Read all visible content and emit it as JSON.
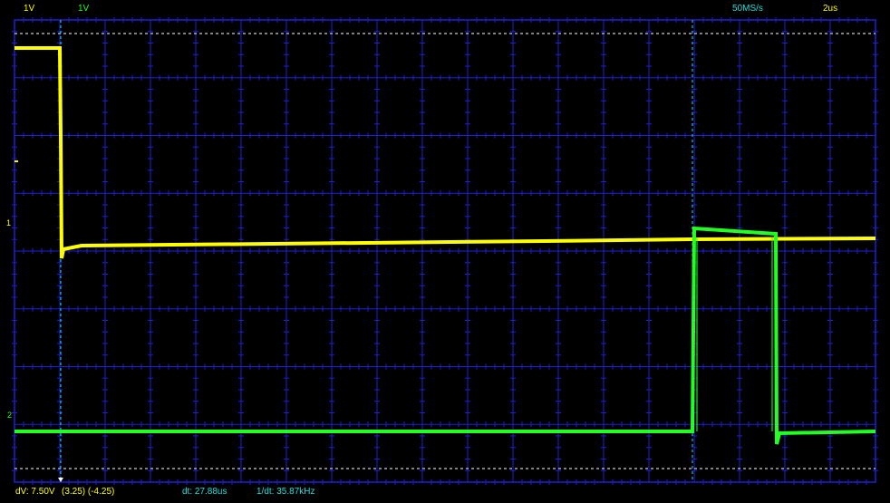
{
  "top_bar": {
    "ch1_scale": "1V",
    "ch2_scale": "1V",
    "sample_rate": "50MS/s",
    "timebase": "2us"
  },
  "markers": {
    "ch1_marker": "1",
    "ch2_marker": "2"
  },
  "bottom_bar": {
    "dv": "dV: 7.50V",
    "cursor_values": "(3.25) (-4.25)",
    "dt": "dt: 27.88us",
    "inv_dt": "1/dt: 35.87kHz"
  },
  "colors": {
    "grid": "#1f1fd6",
    "ch1": "#ffff00",
    "ch2": "#22ff22",
    "cursor": "#22dddd",
    "text_yellow": "#ffff00",
    "text_cyan": "#22dddd"
  }
}
